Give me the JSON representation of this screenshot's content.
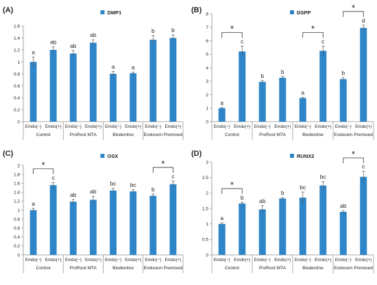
{
  "chart_data": [
    {
      "type": "bar",
      "panel_label": "(A)",
      "legend": "DMP1",
      "categories": [
        "Emdo(−)",
        "Emdo(+)",
        "Emdo(−)",
        "Emdo(+)",
        "Emdo(−)",
        "Emdo(+)",
        "Emdo(−)",
        "Emdo(+)"
      ],
      "groups": [
        "Control",
        "ProRoot MTA",
        "Biodentine",
        "Endocem Premixed"
      ],
      "values": [
        1.0,
        1.2,
        1.14,
        1.32,
        0.8,
        0.81,
        1.37,
        1.4
      ],
      "errors": [
        0.08,
        0.05,
        0.05,
        0.05,
        0.04,
        0.02,
        0.07,
        0.05
      ],
      "labels": [
        "a",
        "ab",
        "ab",
        "ab",
        "a",
        "a",
        "b",
        "b"
      ],
      "yticks": [
        "0",
        "0.2",
        "0.4",
        "0.6",
        "0.8",
        "1",
        "1.2",
        "1.4",
        "1.6"
      ],
      "ylim": [
        0,
        1.6
      ],
      "brackets": []
    },
    {
      "type": "bar",
      "panel_label": "(B)",
      "legend": "DSPP",
      "categories": [
        "Emdo(−)",
        "Emdo(+)",
        "Emdo(−)",
        "Emdo(+)",
        "Emdo(−)",
        "Emdo(+)",
        "Emdo(−)",
        "Emdo(+)"
      ],
      "groups": [
        "Control",
        "ProRoot MTA",
        "Biodentine",
        "Endocem Premixed"
      ],
      "values": [
        1.0,
        5.2,
        2.95,
        3.25,
        1.75,
        5.25,
        3.15,
        6.95
      ],
      "errors": [
        0.05,
        0.4,
        0.1,
        0.1,
        0.05,
        0.35,
        0.12,
        0.2
      ],
      "labels": [
        "a",
        "c",
        "b",
        "b",
        "a",
        "c",
        "b",
        "d"
      ],
      "yticks": [
        "0",
        "1",
        "2",
        "3",
        "4",
        "5",
        "6",
        "7",
        "8"
      ],
      "ylim": [
        0,
        8
      ],
      "brackets": [
        {
          "from": 0,
          "to": 1,
          "label": "*"
        },
        {
          "from": 4,
          "to": 5,
          "label": "*"
        },
        {
          "from": 6,
          "to": 7,
          "label": "*"
        }
      ]
    },
    {
      "type": "bar",
      "panel_label": "(C)",
      "legend": "OSX",
      "categories": [
        "Emdo(−)",
        "Emdo(+)",
        "Emdo(−)",
        "Emdo(+)",
        "Emdo(−)",
        "Emdo(+)",
        "Emdo(−)",
        "Emdo(+)"
      ],
      "groups": [
        "Control",
        "ProRoot MTA",
        "Biodentine",
        "Endocem Premixed"
      ],
      "values": [
        1.0,
        1.56,
        1.19,
        1.23,
        1.44,
        1.42,
        1.32,
        1.58
      ],
      "errors": [
        0.04,
        0.06,
        0.05,
        0.08,
        0.05,
        0.04,
        0.04,
        0.07
      ],
      "labels": [
        "a",
        "c",
        "ab",
        "ab",
        "bc",
        "bc",
        "b",
        "c"
      ],
      "yticks": [
        "0",
        "0.2",
        "0.4",
        "0.6",
        "0.8",
        "1",
        "1.2",
        "1.4",
        "1.6",
        "1.8",
        "2"
      ],
      "ylim": [
        0,
        2
      ],
      "brackets": [
        {
          "from": 0,
          "to": 1,
          "label": "*"
        },
        {
          "from": 6,
          "to": 7,
          "label": "*"
        }
      ]
    },
    {
      "type": "bar",
      "panel_label": "(D)",
      "legend": "RUNX2",
      "categories": [
        "Emdo(−)",
        "Emdo(+)",
        "Emdo(−)",
        "Emdo(+)",
        "Emdo(−)",
        "Emdo(+)",
        "Emdo(−)",
        "Emdo(+)"
      ],
      "groups": [
        "Control",
        "ProRoot MTA",
        "Biodentine",
        "Endocem Premixed"
      ],
      "values": [
        1.0,
        1.66,
        1.47,
        1.82,
        1.85,
        2.24,
        1.39,
        2.52
      ],
      "errors": [
        0.04,
        0.04,
        0.12,
        0.03,
        0.18,
        0.13,
        0.04,
        0.18
      ],
      "labels": [
        "a",
        "b",
        "ab",
        "b",
        "bc",
        "bc",
        "ab",
        "c"
      ],
      "yticks": [
        "0",
        "0.5",
        "1",
        "1.5",
        "2",
        "2.5",
        "3"
      ],
      "ylim": [
        0,
        3
      ],
      "brackets": [
        {
          "from": 0,
          "to": 1,
          "label": "*"
        },
        {
          "from": 6,
          "to": 7,
          "label": "*"
        }
      ]
    }
  ],
  "colors": {
    "bar": "#2e86c8",
    "error_bar": "#555555",
    "axis": "#8c8c8c",
    "text": "#222222"
  }
}
